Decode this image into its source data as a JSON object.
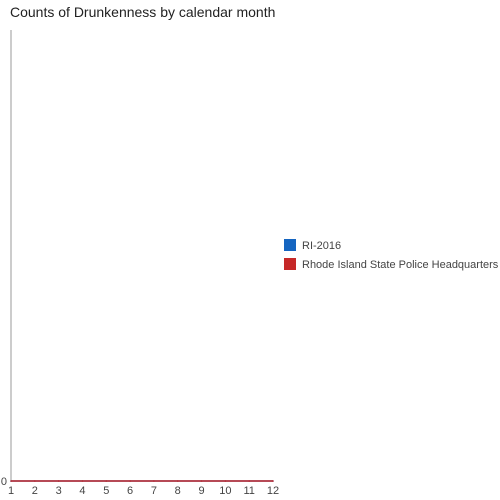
{
  "chart_data": {
    "type": "line",
    "title": "Counts of Drunkenness by calendar month",
    "xlabel": "",
    "ylabel": "",
    "x": [
      1,
      2,
      3,
      4,
      5,
      6,
      7,
      8,
      9,
      10,
      11,
      12
    ],
    "xlim": [
      1,
      12
    ],
    "ylim": [
      0,
      1
    ],
    "y_ticks": [
      0
    ],
    "grid": false,
    "legend_position": "right",
    "series": [
      {
        "name": "RI-2016",
        "color": "#1565c0",
        "values": [
          0,
          0,
          0,
          0,
          0,
          0,
          0,
          0,
          0,
          0,
          0,
          0
        ]
      },
      {
        "name": "Rhode Island State Police Headquarters",
        "color": "#c62828",
        "values": [
          0,
          0,
          0,
          0,
          0,
          0,
          0,
          0,
          0,
          0,
          0,
          0
        ]
      }
    ]
  }
}
